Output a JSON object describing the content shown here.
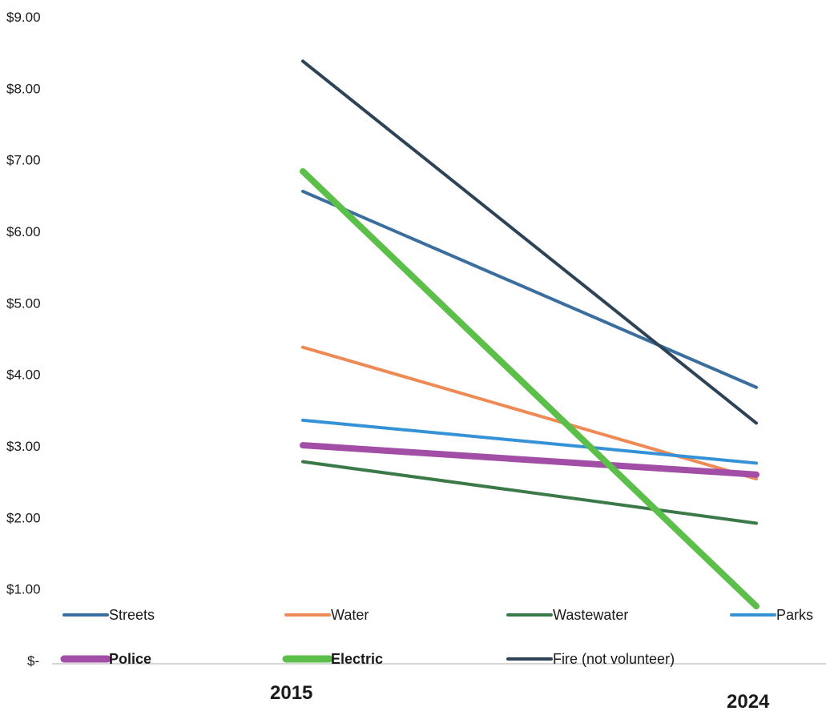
{
  "chart_data": {
    "type": "line",
    "title": "",
    "xlabel": "",
    "ylabel": "",
    "categories": [
      "2015",
      "2024"
    ],
    "ylim": [
      0,
      9
    ],
    "y_ticks": [
      {
        "value": 9,
        "label": "$9.00"
      },
      {
        "value": 8,
        "label": "$8.00"
      },
      {
        "value": 7,
        "label": "$7.00"
      },
      {
        "value": 6,
        "label": "$6.00"
      },
      {
        "value": 5,
        "label": "$5.00"
      },
      {
        "value": 4,
        "label": "$4.00"
      },
      {
        "value": 3,
        "label": "$3.00"
      },
      {
        "value": 2,
        "label": "$2.00"
      },
      {
        "value": 1,
        "label": "$1.00"
      },
      {
        "value": 0,
        "label": "$-"
      }
    ],
    "grid": false,
    "legend_position": "bottom",
    "series": [
      {
        "name": "Streets",
        "values": [
          6.56,
          3.82
        ],
        "color": "#3a6e9f",
        "emphasis": false
      },
      {
        "name": "Water",
        "values": [
          4.38,
          2.54
        ],
        "color": "#ee8a55",
        "emphasis": false
      },
      {
        "name": "Wastewater",
        "values": [
          2.78,
          1.92
        ],
        "color": "#3b7a48",
        "emphasis": false
      },
      {
        "name": "Parks",
        "values": [
          3.36,
          2.76
        ],
        "color": "#3592d6",
        "emphasis": false
      },
      {
        "name": "Police",
        "values": [
          3.01,
          2.6
        ],
        "color": "#a24ea6",
        "emphasis": true
      },
      {
        "name": "Electric",
        "values": [
          6.84,
          0.76
        ],
        "color": "#5bbf49",
        "emphasis": true
      },
      {
        "name": "Fire (not volunteer)",
        "values": [
          8.38,
          3.32
        ],
        "color": "#2f4357",
        "emphasis": false
      }
    ]
  }
}
